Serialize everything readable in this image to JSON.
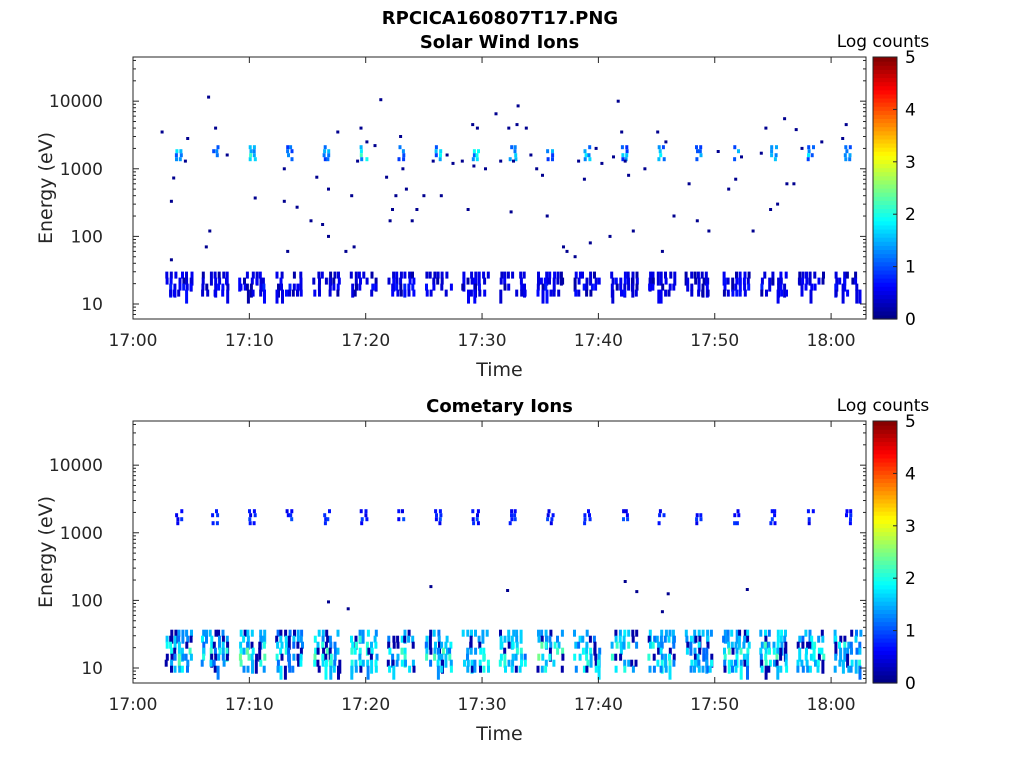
{
  "figure_title": "RPCICA160807T17.PNG",
  "chart_data": [
    {
      "type": "heatmap",
      "title": "Solar Wind Ions",
      "xlabel": "Time",
      "ylabel": "Energy (eV)",
      "yscale": "log",
      "ylim": [
        6,
        45000
      ],
      "x_range_minutes": [
        0,
        63
      ],
      "x_ticks": [
        {
          "min": 0,
          "label": "17:00"
        },
        {
          "min": 10,
          "label": "17:10"
        },
        {
          "min": 20,
          "label": "17:20"
        },
        {
          "min": 30,
          "label": "17:30"
        },
        {
          "min": 40,
          "label": "17:40"
        },
        {
          "min": 50,
          "label": "17:50"
        },
        {
          "min": 60,
          "label": "18:00"
        }
      ],
      "y_ticks": [
        {
          "value": 10,
          "label": "10"
        },
        {
          "value": 100,
          "label": "100"
        },
        {
          "value": 1000,
          "label": "1000"
        },
        {
          "value": 10000,
          "label": "10000"
        }
      ],
      "colorbar": {
        "label": "Log counts",
        "min": 0,
        "max": 5,
        "ticks": [
          "0",
          "1",
          "2",
          "3",
          "4",
          "5"
        ]
      },
      "bursts": [
        {
          "t": 4.0,
          "e": 1700,
          "c": 1.8
        },
        {
          "t": 7.1,
          "e": 1700,
          "c": 1.6
        },
        {
          "t": 10.3,
          "e": 1700,
          "c": 1.9
        },
        {
          "t": 13.5,
          "e": 1700,
          "c": 1.5
        },
        {
          "t": 16.7,
          "e": 1700,
          "c": 1.6
        },
        {
          "t": 19.9,
          "e": 1700,
          "c": 2.0
        },
        {
          "t": 23.1,
          "e": 1700,
          "c": 1.6
        },
        {
          "t": 26.3,
          "e": 1700,
          "c": 1.7
        },
        {
          "t": 29.5,
          "e": 1700,
          "c": 2.0
        },
        {
          "t": 32.7,
          "e": 1700,
          "c": 1.7
        },
        {
          "t": 35.9,
          "e": 1700,
          "c": 1.6
        },
        {
          "t": 39.1,
          "e": 1700,
          "c": 1.8
        },
        {
          "t": 42.3,
          "e": 1700,
          "c": 1.5
        },
        {
          "t": 45.5,
          "e": 1700,
          "c": 1.7
        },
        {
          "t": 48.7,
          "e": 1700,
          "c": 1.5
        },
        {
          "t": 51.9,
          "e": 1700,
          "c": 1.6
        },
        {
          "t": 55.1,
          "e": 1700,
          "c": 1.7
        },
        {
          "t": 58.3,
          "e": 1700,
          "c": 1.6
        },
        {
          "t": 61.5,
          "e": 1700,
          "c": 1.8
        },
        {
          "t": 4.0,
          "e": 20,
          "c": 0.7
        },
        {
          "t": 7.1,
          "e": 20,
          "c": 0.6
        },
        {
          "t": 10.3,
          "e": 20,
          "c": 0.7
        },
        {
          "t": 13.5,
          "e": 20,
          "c": 0.7
        },
        {
          "t": 16.7,
          "e": 20,
          "c": 0.6
        },
        {
          "t": 19.9,
          "e": 20,
          "c": 0.7
        },
        {
          "t": 23.1,
          "e": 20,
          "c": 0.7
        },
        {
          "t": 26.3,
          "e": 20,
          "c": 0.6
        },
        {
          "t": 29.5,
          "e": 20,
          "c": 0.7
        },
        {
          "t": 32.7,
          "e": 20,
          "c": 0.6
        },
        {
          "t": 35.9,
          "e": 20,
          "c": 0.7
        },
        {
          "t": 39.1,
          "e": 20,
          "c": 0.7
        },
        {
          "t": 42.3,
          "e": 20,
          "c": 0.7
        },
        {
          "t": 45.5,
          "e": 20,
          "c": 0.6
        },
        {
          "t": 48.7,
          "e": 20,
          "c": 0.6
        },
        {
          "t": 51.9,
          "e": 20,
          "c": 0.7
        },
        {
          "t": 55.1,
          "e": 20,
          "c": 0.7
        },
        {
          "t": 58.3,
          "e": 20,
          "c": 0.6
        },
        {
          "t": 61.5,
          "e": 20,
          "c": 0.7
        }
      ],
      "points": [
        [
          2.5,
          3500
        ],
        [
          3.3,
          330
        ],
        [
          3.3,
          45
        ],
        [
          3.5,
          730
        ],
        [
          4.5,
          1300
        ],
        [
          4.7,
          2800
        ],
        [
          6.3,
          70
        ],
        [
          6.5,
          11500
        ],
        [
          6.6,
          120
        ],
        [
          7.1,
          4000
        ],
        [
          8.1,
          1600
        ],
        [
          10.5,
          370
        ],
        [
          13.0,
          330
        ],
        [
          13.0,
          1000
        ],
        [
          13.3,
          60
        ],
        [
          14.1,
          270
        ],
        [
          15.3,
          170
        ],
        [
          15.8,
          750
        ],
        [
          16.3,
          150
        ],
        [
          16.8,
          100
        ],
        [
          16.8,
          500
        ],
        [
          17.6,
          3500
        ],
        [
          18.3,
          60
        ],
        [
          18.8,
          400
        ],
        [
          19.0,
          70
        ],
        [
          19.3,
          1300
        ],
        [
          19.6,
          4000
        ],
        [
          20.1,
          2500
        ],
        [
          20.8,
          2200
        ],
        [
          21.3,
          10500
        ],
        [
          21.8,
          750
        ],
        [
          22.1,
          170
        ],
        [
          22.3,
          250
        ],
        [
          22.6,
          400
        ],
        [
          23.0,
          3000
        ],
        [
          23.2,
          1000
        ],
        [
          23.5,
          500
        ],
        [
          24.0,
          170
        ],
        [
          24.4,
          250
        ],
        [
          25.0,
          400
        ],
        [
          25.8,
          1300
        ],
        [
          26.5,
          400
        ],
        [
          27.0,
          1600
        ],
        [
          27.5,
          1200
        ],
        [
          28.3,
          1300
        ],
        [
          28.8,
          250
        ],
        [
          29.2,
          4500
        ],
        [
          29.3,
          1100
        ],
        [
          29.6,
          4000
        ],
        [
          30.3,
          1000
        ],
        [
          31.2,
          6500
        ],
        [
          31.6,
          1300
        ],
        [
          32.3,
          4000
        ],
        [
          32.5,
          230
        ],
        [
          32.7,
          1300
        ],
        [
          33.0,
          4500
        ],
        [
          33.1,
          8500
        ],
        [
          33.8,
          4000
        ],
        [
          34.2,
          1600
        ],
        [
          34.7,
          1000
        ],
        [
          35.2,
          800
        ],
        [
          35.6,
          200
        ],
        [
          37.0,
          70
        ],
        [
          37.3,
          60
        ],
        [
          38.0,
          50
        ],
        [
          38.3,
          1300
        ],
        [
          38.8,
          700
        ],
        [
          39.3,
          80
        ],
        [
          39.8,
          2000
        ],
        [
          40.3,
          1200
        ],
        [
          41.0,
          100
        ],
        [
          41.3,
          1500
        ],
        [
          41.7,
          10000
        ],
        [
          42.0,
          3500
        ],
        [
          42.3,
          1300
        ],
        [
          42.6,
          800
        ],
        [
          43.0,
          120
        ],
        [
          44.0,
          1000
        ],
        [
          45.1,
          3500
        ],
        [
          45.5,
          60
        ],
        [
          45.8,
          2500
        ],
        [
          46.5,
          200
        ],
        [
          47.8,
          600
        ],
        [
          48.5,
          170
        ],
        [
          49.5,
          120
        ],
        [
          50.3,
          1800
        ],
        [
          51.2,
          500
        ],
        [
          51.8,
          700
        ],
        [
          52.3,
          1500
        ],
        [
          53.3,
          120
        ],
        [
          54.0,
          1700
        ],
        [
          54.4,
          4000
        ],
        [
          54.8,
          250
        ],
        [
          55.4,
          300
        ],
        [
          56.0,
          5500
        ],
        [
          56.2,
          600
        ],
        [
          56.8,
          600
        ],
        [
          57.0,
          3800
        ],
        [
          57.5,
          2000
        ],
        [
          59.2,
          2500
        ],
        [
          61.0,
          2800
        ],
        [
          61.3,
          4500
        ]
      ]
    },
    {
      "type": "heatmap",
      "title": "Cometary Ions",
      "xlabel": "Time",
      "ylabel": "Energy (eV)",
      "yscale": "log",
      "ylim": [
        6,
        45000
      ],
      "x_range_minutes": [
        0,
        63
      ],
      "x_ticks": [
        {
          "min": 0,
          "label": "17:00"
        },
        {
          "min": 10,
          "label": "17:10"
        },
        {
          "min": 20,
          "label": "17:20"
        },
        {
          "min": 30,
          "label": "17:30"
        },
        {
          "min": 40,
          "label": "17:40"
        },
        {
          "min": 50,
          "label": "17:50"
        },
        {
          "min": 60,
          "label": "18:00"
        }
      ],
      "y_ticks": [
        {
          "value": 10,
          "label": "10"
        },
        {
          "value": 100,
          "label": "100"
        },
        {
          "value": 1000,
          "label": "1000"
        },
        {
          "value": 10000,
          "label": "10000"
        }
      ],
      "colorbar": {
        "label": "Log counts",
        "min": 0,
        "max": 5,
        "ticks": [
          "0",
          "1",
          "2",
          "3",
          "4",
          "5"
        ]
      },
      "bursts": [
        {
          "t": 4.0,
          "e": 1700,
          "c": 0.9
        },
        {
          "t": 7.1,
          "e": 1700,
          "c": 0.9
        },
        {
          "t": 10.3,
          "e": 1700,
          "c": 0.9
        },
        {
          "t": 13.5,
          "e": 1700,
          "c": 0.9
        },
        {
          "t": 16.7,
          "e": 1700,
          "c": 0.9
        },
        {
          "t": 19.9,
          "e": 1700,
          "c": 0.9
        },
        {
          "t": 23.1,
          "e": 1700,
          "c": 0.9
        },
        {
          "t": 26.3,
          "e": 1700,
          "c": 0.9
        },
        {
          "t": 29.5,
          "e": 1700,
          "c": 0.9
        },
        {
          "t": 32.7,
          "e": 1700,
          "c": 0.9
        },
        {
          "t": 35.9,
          "e": 1700,
          "c": 0.9
        },
        {
          "t": 39.1,
          "e": 1700,
          "c": 0.9
        },
        {
          "t": 42.3,
          "e": 1700,
          "c": 0.9
        },
        {
          "t": 45.5,
          "e": 1700,
          "c": 0.9
        },
        {
          "t": 48.7,
          "e": 1700,
          "c": 0.9
        },
        {
          "t": 51.9,
          "e": 1700,
          "c": 0.9
        },
        {
          "t": 55.1,
          "e": 1700,
          "c": 0.9
        },
        {
          "t": 58.3,
          "e": 1700,
          "c": 0.9
        },
        {
          "t": 61.5,
          "e": 1700,
          "c": 0.9
        },
        {
          "t": 4.0,
          "e": 18,
          "c": 2.1
        },
        {
          "t": 7.1,
          "e": 18,
          "c": 2.0
        },
        {
          "t": 10.3,
          "e": 18,
          "c": 2.2
        },
        {
          "t": 13.5,
          "e": 18,
          "c": 2.0
        },
        {
          "t": 16.7,
          "e": 18,
          "c": 2.1
        },
        {
          "t": 19.9,
          "e": 18,
          "c": 2.3
        },
        {
          "t": 23.1,
          "e": 18,
          "c": 2.0
        },
        {
          "t": 26.3,
          "e": 18,
          "c": 2.1
        },
        {
          "t": 29.5,
          "e": 18,
          "c": 2.2
        },
        {
          "t": 32.7,
          "e": 18,
          "c": 2.0
        },
        {
          "t": 35.9,
          "e": 18,
          "c": 2.3
        },
        {
          "t": 39.1,
          "e": 18,
          "c": 2.1
        },
        {
          "t": 42.3,
          "e": 18,
          "c": 2.2
        },
        {
          "t": 45.5,
          "e": 18,
          "c": 2.1
        },
        {
          "t": 48.7,
          "e": 18,
          "c": 2.0
        },
        {
          "t": 51.9,
          "e": 18,
          "c": 2.1
        },
        {
          "t": 55.1,
          "e": 18,
          "c": 2.2
        },
        {
          "t": 58.3,
          "e": 18,
          "c": 2.0
        },
        {
          "t": 61.5,
          "e": 18,
          "c": 2.1
        }
      ],
      "points": [
        [
          16.8,
          95
        ],
        [
          18.5,
          75
        ],
        [
          25.6,
          160
        ],
        [
          32.2,
          140
        ],
        [
          42.3,
          190
        ],
        [
          43.3,
          135
        ],
        [
          45.5,
          68
        ],
        [
          46.0,
          125
        ],
        [
          52.8,
          145
        ]
      ]
    }
  ]
}
